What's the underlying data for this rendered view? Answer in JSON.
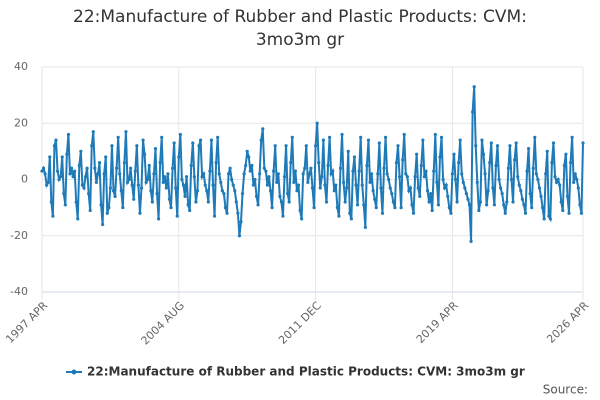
{
  "chart_data": {
    "type": "line",
    "title": "22:Manufacture of Rubber and Plastic Products: CVM: 3mo3m gr",
    "source": "Source:",
    "categories": [
      "1997 APR",
      null,
      null,
      null,
      null,
      null,
      null,
      null,
      null,
      null,
      null,
      null,
      null,
      null,
      null,
      null,
      null,
      null,
      null,
      null,
      null,
      null,
      null,
      null,
      null,
      null,
      null,
      null,
      null,
      null,
      null,
      null,
      null,
      null,
      null,
      null,
      null,
      null,
      null,
      null,
      null,
      null,
      null,
      null,
      null,
      null,
      null,
      null,
      null,
      null,
      null,
      null,
      null,
      null,
      null,
      null,
      null,
      null,
      null,
      null,
      null,
      null,
      null,
      null,
      null,
      null,
      null,
      null,
      null,
      null,
      null,
      null,
      null,
      null,
      null,
      null,
      null,
      null,
      null,
      null,
      null,
      null,
      null,
      null,
      null,
      null,
      null,
      null,
      "2004 AUG",
      null,
      null,
      null,
      null,
      null,
      null,
      null,
      null,
      null,
      null,
      null,
      null,
      null,
      null,
      null,
      null,
      null,
      null,
      null,
      null,
      null,
      null,
      null,
      null,
      null,
      null,
      null,
      null,
      null,
      null,
      null,
      null,
      null,
      null,
      null,
      null,
      null,
      null,
      null,
      null,
      null,
      null,
      null,
      null,
      null,
      null,
      null,
      null,
      null,
      null,
      null,
      null,
      null,
      null,
      null,
      null,
      null,
      null,
      null,
      null,
      null,
      null,
      null,
      null,
      null,
      null,
      null,
      null,
      null,
      null,
      null,
      null,
      null,
      null,
      null,
      null,
      null,
      null,
      null,
      null,
      null,
      null,
      null,
      null,
      null,
      null,
      null,
      "2011 DEC",
      null,
      null,
      null,
      null,
      null,
      null,
      null,
      null,
      null,
      null,
      null,
      null,
      null,
      null,
      null,
      null,
      null,
      null,
      null,
      null,
      null,
      null,
      null,
      null,
      null,
      null,
      null,
      null,
      null,
      null,
      null,
      null,
      null,
      null,
      null,
      null,
      null,
      null,
      null,
      null,
      null,
      null,
      null,
      null,
      null,
      null,
      null,
      null,
      null,
      null,
      null,
      null,
      null,
      null,
      null,
      null,
      null,
      null,
      null,
      null,
      null,
      null,
      null,
      null,
      null,
      null,
      null,
      null,
      null,
      null,
      null,
      null,
      null,
      null,
      null,
      null,
      null,
      null,
      null,
      null,
      null,
      null,
      null,
      null,
      null,
      null,
      null,
      "2019 APR",
      null,
      null,
      null,
      null,
      null,
      null,
      null,
      null,
      null,
      null,
      null,
      null,
      null,
      null,
      null,
      null,
      null,
      null,
      null,
      null,
      null,
      null,
      null,
      null,
      null,
      null,
      null,
      null,
      null,
      null,
      null,
      null,
      null,
      null,
      null,
      null,
      null,
      null,
      null,
      null,
      null,
      null,
      null,
      null,
      null,
      null,
      null,
      null,
      null,
      null,
      null,
      null,
      null,
      null,
      null,
      null,
      null,
      null,
      null,
      null,
      null,
      null,
      null,
      null,
      null,
      null,
      null,
      null,
      null,
      null,
      null,
      null,
      null,
      null,
      null,
      null,
      null,
      null,
      null,
      null,
      null,
      null,
      null,
      "2026 APR"
    ],
    "series": [
      {
        "name": "22:Manufacture of Rubber and Plastic Products: CVM: 3mo3m gr",
        "color": "#1f7ab8",
        "values": [
          3,
          4,
          2,
          -2,
          -1,
          8,
          -8,
          -13,
          12,
          14,
          3,
          0,
          1,
          8,
          -5,
          -9,
          9,
          16,
          2,
          4,
          1,
          3,
          -8,
          -14,
          5,
          10,
          -2,
          -3,
          1,
          4,
          -5,
          -11,
          12,
          17,
          4,
          -1,
          2,
          6,
          -9,
          -16,
          2,
          8,
          -12,
          -10,
          -3,
          12,
          -4,
          -6,
          4,
          15,
          2,
          -4,
          -10,
          6,
          17,
          -1,
          0,
          4,
          -2,
          -7,
          3,
          12,
          -2,
          -12,
          -3,
          14,
          9,
          -1,
          0,
          5,
          -4,
          -8,
          2,
          11,
          -5,
          -14,
          6,
          15,
          -1,
          1,
          -3,
          2,
          -7,
          -10,
          4,
          13,
          -3,
          -13,
          8,
          16,
          0,
          -2,
          -6,
          1,
          -9,
          -11,
          5,
          13,
          1,
          -8,
          -4,
          12,
          14,
          1,
          2,
          -2,
          -4,
          -8,
          3,
          14,
          -2,
          -13,
          6,
          15,
          2,
          -1,
          -4,
          -5,
          -10,
          -12,
          2,
          4,
          0,
          -2,
          -4,
          -8,
          -12,
          -20,
          -15,
          -5,
          2,
          5,
          10,
          8,
          3,
          5,
          -2,
          0,
          -6,
          -9,
          2,
          14,
          18,
          4,
          3,
          -2,
          1,
          -4,
          -10,
          3,
          12,
          -1,
          2,
          -6,
          -8,
          -13,
          1,
          12,
          -5,
          -8,
          6,
          15,
          -1,
          3,
          -4,
          -2,
          -11,
          -14,
          2,
          4,
          12,
          -1,
          2,
          4,
          -3,
          -10,
          12,
          20,
          6,
          -3,
          1,
          14,
          -2,
          -8,
          5,
          15,
          2,
          3,
          -4,
          -2,
          -10,
          -13,
          4,
          16,
          -1,
          -8,
          -3,
          10,
          -12,
          -14,
          3,
          8,
          -2,
          -9,
          3,
          15,
          -2,
          -9,
          -17,
          5,
          14,
          -1,
          2,
          -4,
          -7,
          -10,
          2,
          13,
          -3,
          -12,
          4,
          15,
          2,
          0,
          -3,
          -5,
          -8,
          -10,
          6,
          12,
          1,
          -10,
          7,
          16,
          2,
          1,
          -4,
          -3,
          -9,
          -12,
          1,
          9,
          -3,
          -6,
          5,
          14,
          1,
          3,
          -4,
          -8,
          -5,
          -11,
          3,
          16,
          -1,
          -9,
          8,
          15,
          0,
          -3,
          -2,
          -6,
          -10,
          -12,
          2,
          9,
          0,
          -8,
          6,
          14,
          2,
          -1,
          -3,
          -5,
          -7,
          -9,
          -22,
          24,
          33,
          12,
          -1,
          -11,
          -8,
          14,
          9,
          2,
          -9,
          -4,
          6,
          13,
          -3,
          -9,
          5,
          12,
          0,
          -3,
          -5,
          -9,
          -12,
          -8,
          4,
          12,
          0,
          -8,
          7,
          13,
          1,
          -2,
          -4,
          -7,
          -9,
          -12,
          3,
          11,
          -5,
          -10,
          4,
          15,
          2,
          0,
          -3,
          -6,
          -10,
          -14,
          2,
          10,
          -13,
          -14,
          6,
          13,
          1,
          -1,
          0,
          -2,
          -8,
          -11,
          5,
          9,
          -6,
          -12,
          6,
          15,
          -1,
          2,
          0,
          -3,
          -9,
          -12,
          13
        ]
      }
    ],
    "ylim": [
      -40,
      40
    ],
    "yticks": [
      -40,
      -20,
      0,
      20,
      40
    ],
    "grid": true
  }
}
